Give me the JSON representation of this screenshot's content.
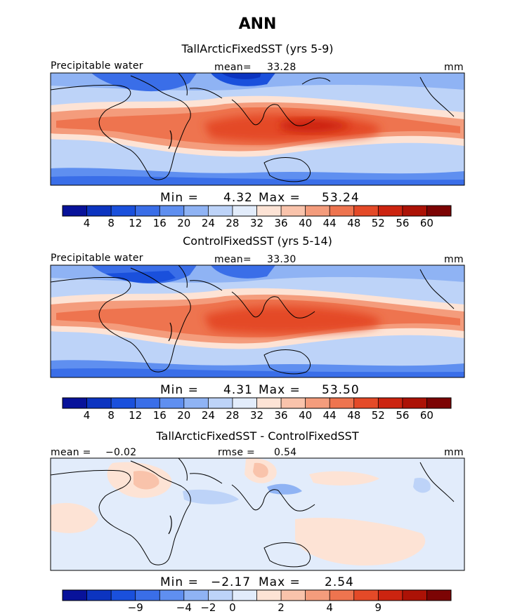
{
  "figure": {
    "title": "ANN"
  },
  "chart_data": [
    {
      "type": "heatmap",
      "title": "TallArcticFixedSST (yrs 5-9)",
      "variable_label": "Precipitable water",
      "stat_label": "mean=",
      "stat_value": "33.28",
      "units": "mm",
      "min_label": "Min =",
      "min_value": "4.32",
      "max_label": "Max =",
      "max_value": "53.24",
      "colorbar_levels": [
        "4",
        "8",
        "12",
        "16",
        "20",
        "24",
        "28",
        "32",
        "36",
        "40",
        "44",
        "48",
        "52",
        "56",
        "60"
      ],
      "colorbar_colors": [
        "#08129a",
        "#0c34c0",
        "#1a50dc",
        "#3a6ee8",
        "#5f8ff0",
        "#8fb3f4",
        "#bdd3f8",
        "#e2ecfb",
        "#fde3d5",
        "#f9c3ab",
        "#f49c7c",
        "#ee744f",
        "#e44a28",
        "#cc2410",
        "#ac1206",
        "#7c0404"
      ],
      "map": {
        "projection": "equidistant-cylindrical",
        "region": "Africa–Indian Ocean–Western Pacific"
      }
    },
    {
      "type": "heatmap",
      "title": "ControlFixedSST (yrs 5-14)",
      "variable_label": "Precipitable water",
      "stat_label": "mean=",
      "stat_value": "33.30",
      "units": "mm",
      "min_label": "Min =",
      "min_value": "4.31",
      "max_label": "Max =",
      "max_value": "53.50",
      "colorbar_levels": [
        "4",
        "8",
        "12",
        "16",
        "20",
        "24",
        "28",
        "32",
        "36",
        "40",
        "44",
        "48",
        "52",
        "56",
        "60"
      ],
      "colorbar_colors": [
        "#08129a",
        "#0c34c0",
        "#1a50dc",
        "#3a6ee8",
        "#5f8ff0",
        "#8fb3f4",
        "#bdd3f8",
        "#e2ecfb",
        "#fde3d5",
        "#f9c3ab",
        "#f49c7c",
        "#ee744f",
        "#e44a28",
        "#cc2410",
        "#ac1206",
        "#7c0404"
      ]
    },
    {
      "type": "heatmap",
      "title": "TallArcticFixedSST - ControlFixedSST",
      "stat1_label": "mean =",
      "stat1_value": "−0.02",
      "stat2_label": "rmse =",
      "stat2_value": "0.54",
      "units": "mm",
      "min_label": "Min =",
      "min_value": "−2.17",
      "max_label": "Max =",
      "max_value": "2.54",
      "colorbar_levels": [
        "−9",
        "−4",
        "−2",
        "0",
        "2",
        "4",
        "9"
      ],
      "colorbar_colors": [
        "#08129a",
        "#0c34c0",
        "#1a50dc",
        "#3a6ee8",
        "#5f8ff0",
        "#8fb3f4",
        "#bdd3f8",
        "#e2ecfb",
        "#fde3d5",
        "#f9c3ab",
        "#f49c7c",
        "#ee744f",
        "#e44a28",
        "#cc2410",
        "#ac1206",
        "#7c0404"
      ]
    }
  ]
}
